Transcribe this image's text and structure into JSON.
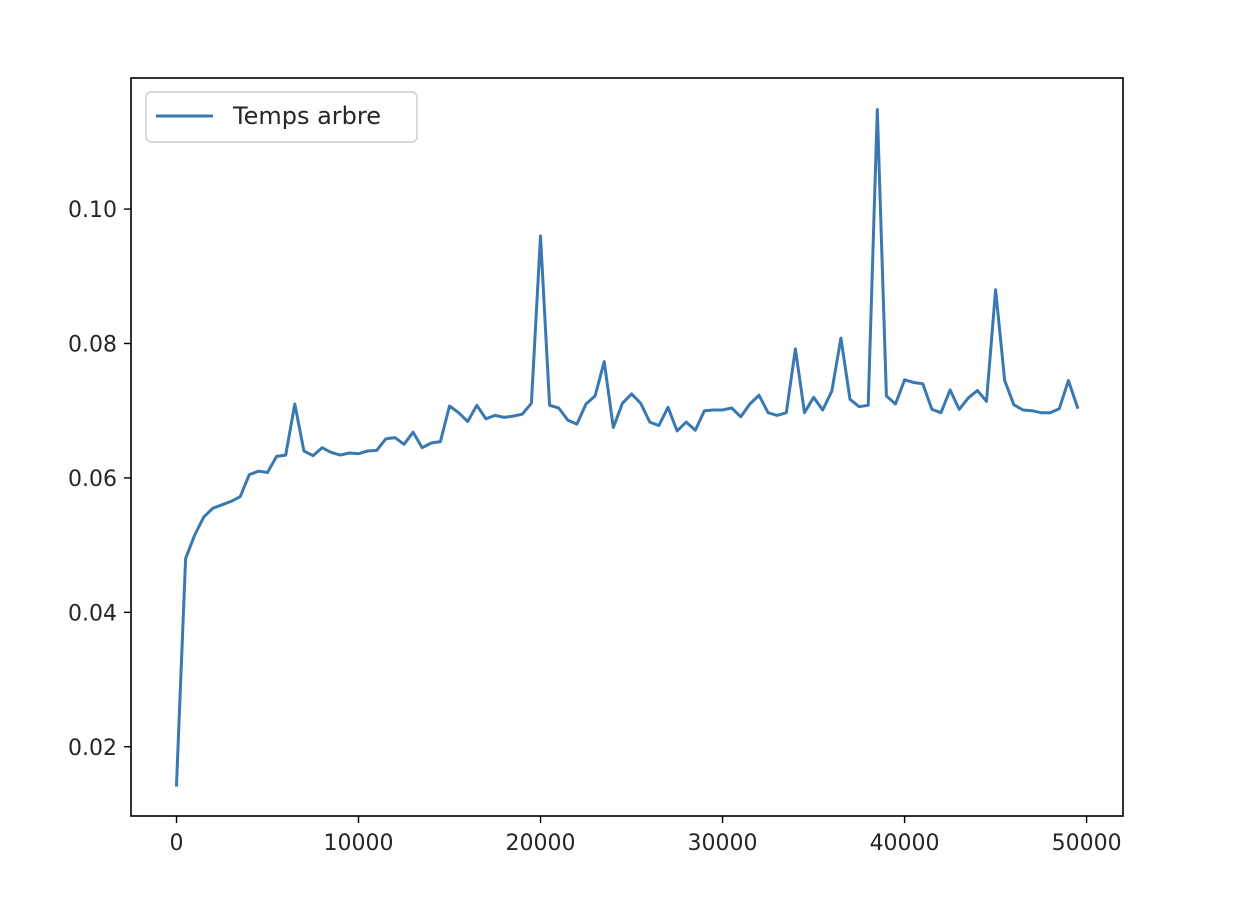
{
  "chart_data": {
    "type": "line",
    "title": "",
    "xlabel": "",
    "ylabel": "",
    "xlim": [
      -2500,
      52000
    ],
    "ylim": [
      0.0097,
      0.1195
    ],
    "xticks": [
      0,
      10000,
      20000,
      30000,
      40000,
      50000
    ],
    "xtick_labels": [
      "0",
      "10000",
      "20000",
      "30000",
      "40000",
      "50000"
    ],
    "yticks": [
      0.02,
      0.04,
      0.06,
      0.08,
      0.1
    ],
    "ytick_labels": [
      "0.02",
      "0.04",
      "0.06",
      "0.08",
      "0.10"
    ],
    "grid": false,
    "legend_position": "top-left",
    "series": [
      {
        "name": "Temps arbre",
        "color": "#3a78b2",
        "x": [
          0,
          500,
          1000,
          1500,
          2000,
          2500,
          3000,
          3500,
          4000,
          4500,
          5000,
          5500,
          6000,
          6500,
          7000,
          7500,
          8000,
          8500,
          9000,
          9500,
          10000,
          10500,
          11000,
          11500,
          12000,
          12500,
          13000,
          13500,
          14000,
          14500,
          15000,
          15500,
          16000,
          16500,
          17000,
          17500,
          18000,
          18500,
          19000,
          19500,
          20000,
          20500,
          21000,
          21500,
          22000,
          22500,
          23000,
          23500,
          24000,
          24500,
          25000,
          25500,
          26000,
          26500,
          27000,
          27500,
          28000,
          28500,
          29000,
          29500,
          30000,
          30500,
          31000,
          31500,
          32000,
          32500,
          33000,
          33500,
          34000,
          34500,
          35000,
          35500,
          36000,
          36500,
          37000,
          37500,
          38000,
          38500,
          39000,
          39500,
          40000,
          40500,
          41000,
          41500,
          42000,
          42500,
          43000,
          43500,
          44000,
          44500,
          45000,
          45500,
          46000,
          46500,
          47000,
          47500,
          48000,
          48500,
          49000,
          49500
        ],
        "values": [
          0.0143,
          0.048,
          0.0515,
          0.0542,
          0.0555,
          0.056,
          0.0565,
          0.0572,
          0.0605,
          0.061,
          0.0608,
          0.0632,
          0.0634,
          0.071,
          0.064,
          0.0633,
          0.0645,
          0.0638,
          0.0634,
          0.0637,
          0.0636,
          0.064,
          0.0641,
          0.0658,
          0.066,
          0.065,
          0.0668,
          0.0645,
          0.0652,
          0.0654,
          0.0707,
          0.0697,
          0.0684,
          0.0708,
          0.0688,
          0.0693,
          0.069,
          0.0692,
          0.0695,
          0.0711,
          0.096,
          0.0708,
          0.0704,
          0.0686,
          0.068,
          0.071,
          0.0722,
          0.0773,
          0.0675,
          0.0711,
          0.0725,
          0.0711,
          0.0683,
          0.0678,
          0.0705,
          0.067,
          0.0683,
          0.0671,
          0.07,
          0.0701,
          0.0701,
          0.0704,
          0.0691,
          0.071,
          0.0723,
          0.0697,
          0.0693,
          0.0697,
          0.0792,
          0.0697,
          0.072,
          0.0701,
          0.0729,
          0.0808,
          0.0717,
          0.0706,
          0.0708,
          0.1148,
          0.0722,
          0.071,
          0.0746,
          0.0742,
          0.074,
          0.0702,
          0.0697,
          0.0731,
          0.0702,
          0.0719,
          0.073,
          0.0714,
          0.088,
          0.0745,
          0.0709,
          0.0701,
          0.07,
          0.0697,
          0.0697,
          0.0703,
          0.0745,
          0.0705
        ]
      }
    ]
  }
}
